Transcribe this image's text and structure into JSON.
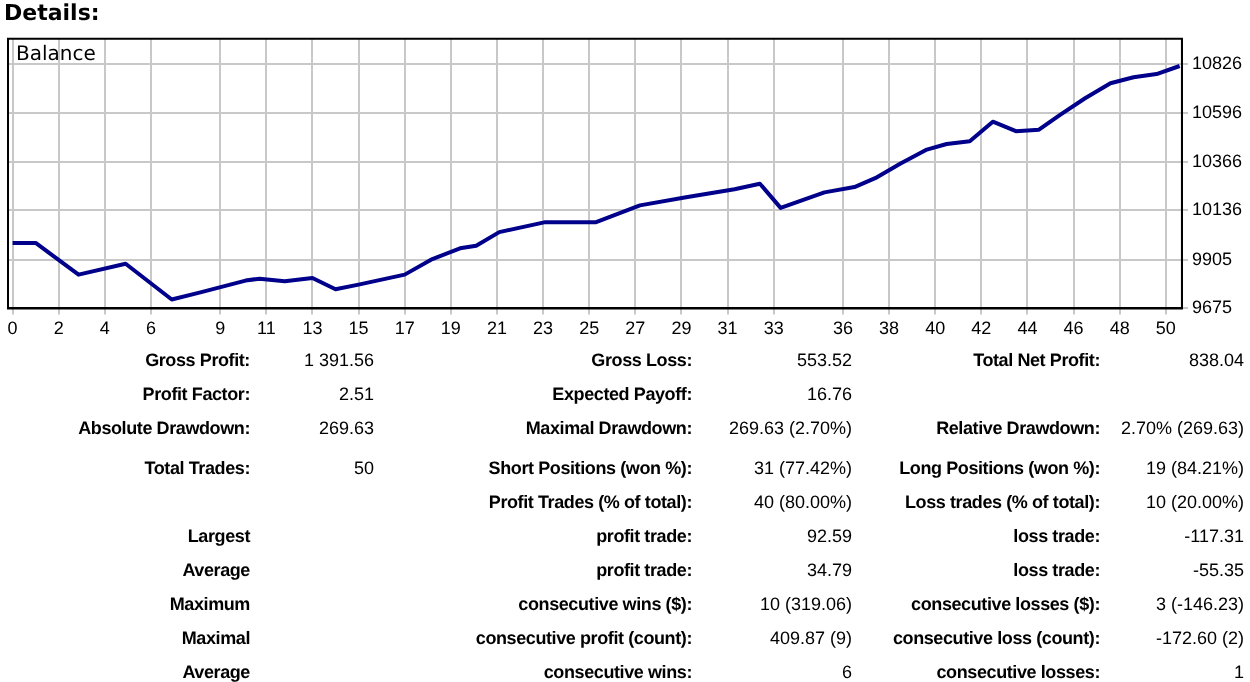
{
  "chart_data": [
    {
      "type": "line",
      "title": "Details:",
      "legend": "top left",
      "grid": true,
      "x": [
        0,
        1,
        2.86,
        4.9,
        6.9,
        8.1,
        10.1,
        10.7,
        11.8,
        13.0,
        14.0,
        15.0,
        17.0,
        18.2,
        19.4,
        20.1,
        21.1,
        23.1,
        25.3,
        27.2,
        29.2,
        31.3,
        32.4,
        33.3,
        35.2,
        36.5,
        37.4,
        38.5,
        39.6,
        40.5,
        41.5,
        42.5,
        43.5,
        44.5,
        45.4,
        46.5,
        47.6,
        48.6,
        49.6,
        50.6
      ],
      "series": [
        {
          "name": "Balance",
          "color": "#00008b",
          "values": [
            9983,
            9983,
            9834,
            9885,
            9717,
            9749,
            9806,
            9815,
            9803,
            9818,
            9765,
            9787,
            9834,
            9907,
            9958,
            9970,
            10034,
            10081,
            10081,
            10160,
            10198,
            10236,
            10262,
            10148,
            10221,
            10246,
            10288,
            10357,
            10421,
            10449,
            10462,
            10554,
            10509,
            10516,
            10585,
            10664,
            10735,
            10763,
            10778,
            10816
          ]
        }
      ],
      "xlim": [
        -0.2,
        50.7
      ],
      "ylim": [
        9675,
        10944
      ],
      "xticks": [
        0,
        2,
        4,
        6,
        9,
        11,
        13,
        15,
        17,
        19,
        21,
        23,
        25,
        27,
        29,
        31,
        33,
        36,
        38,
        40,
        42,
        44,
        46,
        48,
        50
      ],
      "yticks": [
        9675,
        9905,
        10136,
        10366,
        10596,
        10826
      ]
    },
    {
      "type": "other",
      "annotations": [
        "Gross Profit:",
        "1 391.56",
        "Gross Loss:",
        "553.52",
        "Total Net Profit:",
        "838.04",
        "Profit Factor:",
        "2.51",
        "Expected Payoff:",
        "16.76",
        "Absolute Drawdown:",
        "269.63",
        "Maximal Drawdown:",
        "269.63 (2.70%)",
        "Relative Drawdown:",
        "2.70% (269.63)",
        "Total Trades:",
        "50",
        "Short Positions (won %):",
        "31 (77.42%)",
        "Long Positions (won %):",
        "19 (84.21%)",
        "Profit Trades (% of total):",
        "40 (80.00%)",
        "Loss trades (% of total):",
        "10 (20.00%)",
        "Largest",
        "profit trade:",
        "92.59",
        "loss trade:",
        "-117.31",
        "Average",
        "profit trade:",
        "34.79",
        "loss trade:",
        "-55.35",
        "Maximum",
        "consecutive wins ($):",
        "10 (319.06)",
        "consecutive losses ($):",
        "3 (-146.23)",
        "Maximal",
        "consecutive profit (count):",
        "409.87 (9)",
        "consecutive loss (count):",
        "-172.60 (2)",
        "Average",
        "consecutive wins:",
        "6",
        "consecutive losses:",
        "1"
      ]
    }
  ]
}
